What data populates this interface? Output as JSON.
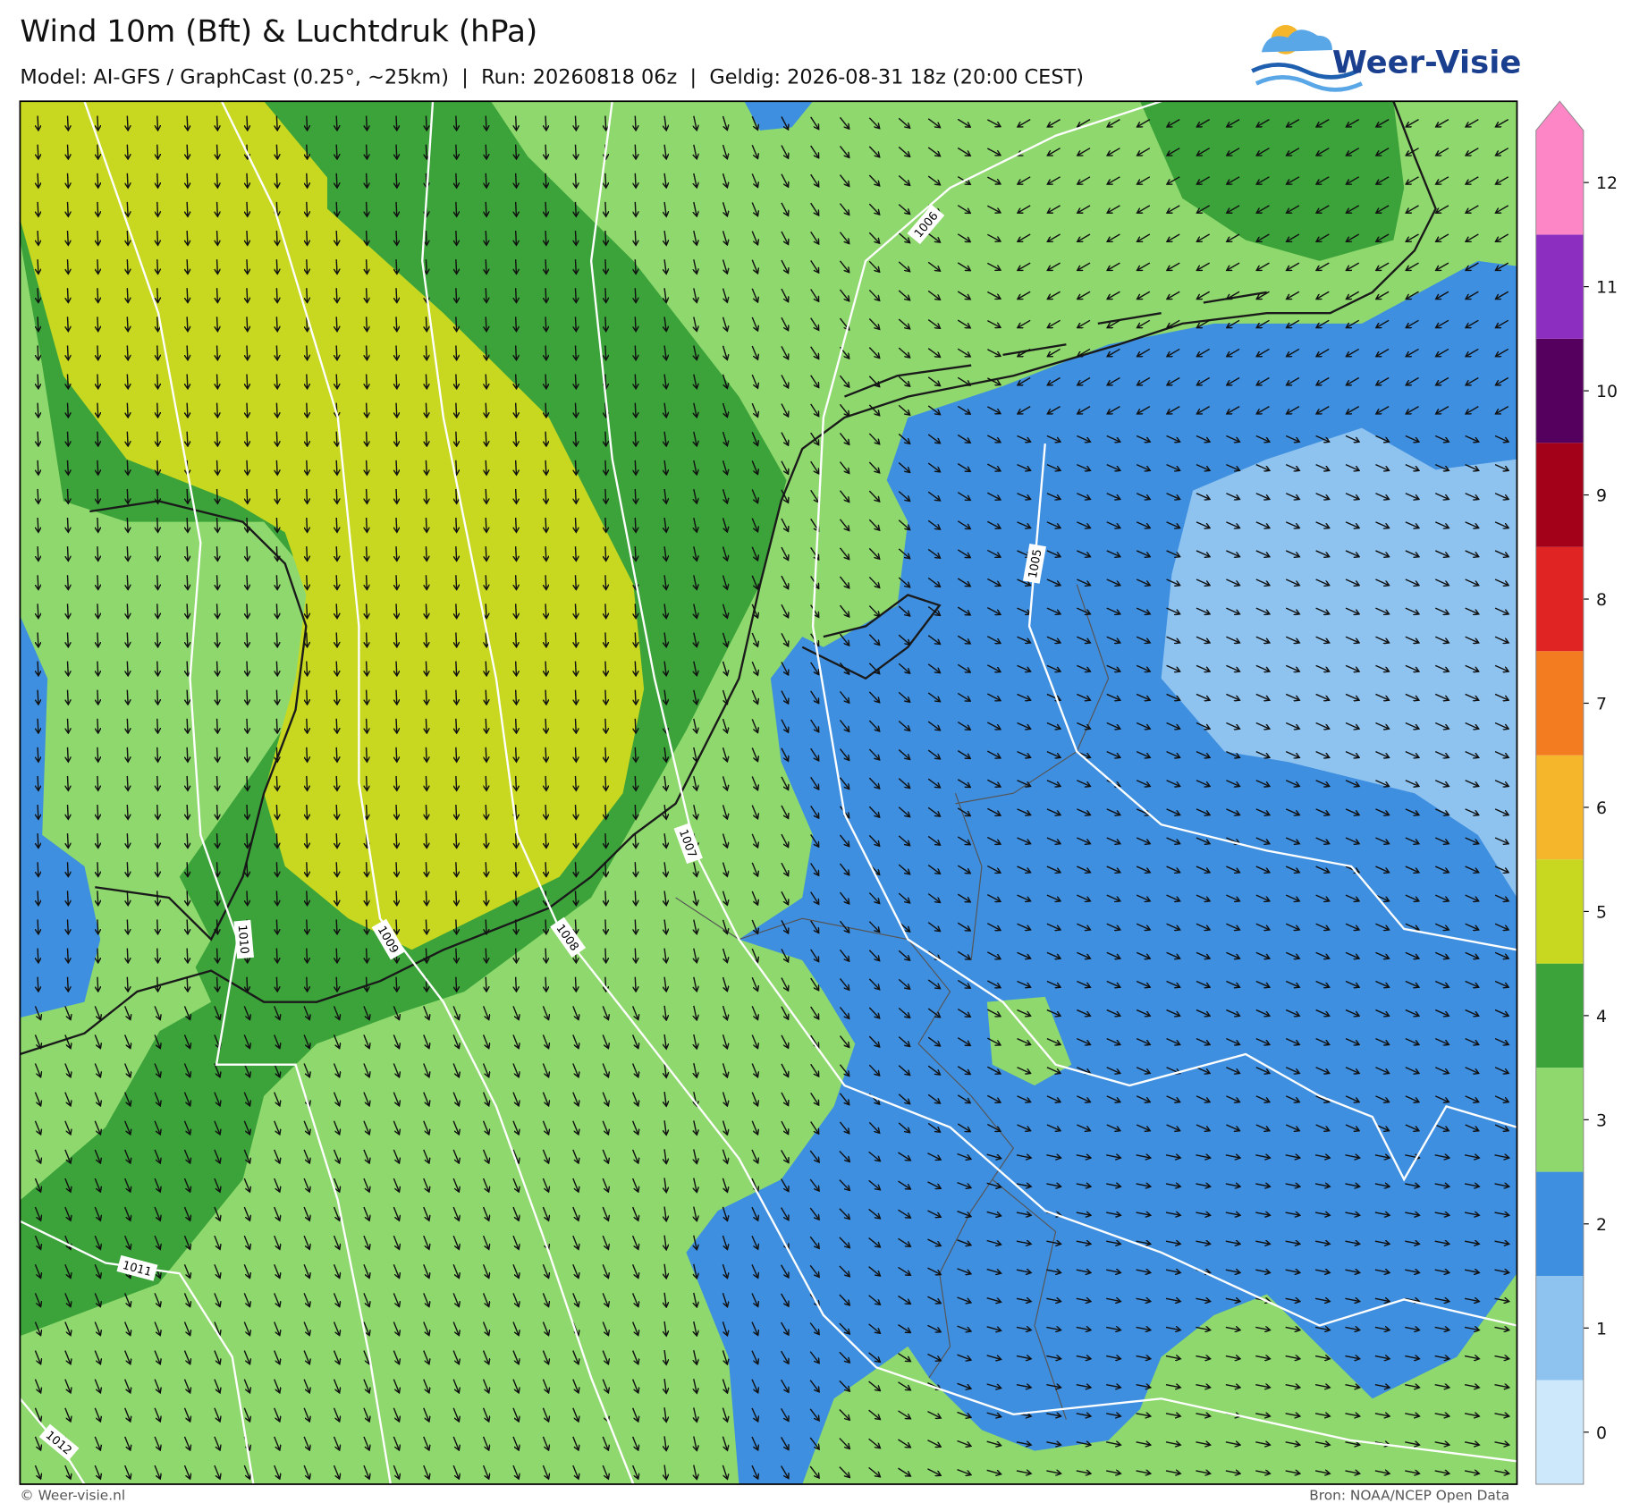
{
  "header": {
    "title": "Wind 10m (Bft) & Luchtdruk (hPa)",
    "subtitle": "Model: AI-GFS / GraphCast (0.25°, ~25km)  |  Run: 20260818 06z  |  Geldig: 2026-08-31 18z (20:00 CEST)",
    "logo": "Weer-Visie"
  },
  "map": {
    "isobars": [
      1005,
      1006,
      1007,
      1008,
      1009,
      1010,
      1011,
      1012
    ]
  },
  "colorbar": {
    "ticks": [
      0,
      1,
      2,
      3,
      4,
      5,
      6,
      7,
      8,
      9,
      10,
      11,
      12
    ],
    "colors": [
      "#cde8fb",
      "#8fc3ef",
      "#3f8fe0",
      "#8ed86d",
      "#3ba33a",
      "#c8d820",
      "#f5b62c",
      "#f47c20",
      "#e02424",
      "#a3001a",
      "#55005f",
      "#8c2fc0",
      "#fd87c6"
    ]
  },
  "footer": {
    "left": "© Weer-visie.nl",
    "right": "Bron: NOAA/NCEP Open Data"
  }
}
